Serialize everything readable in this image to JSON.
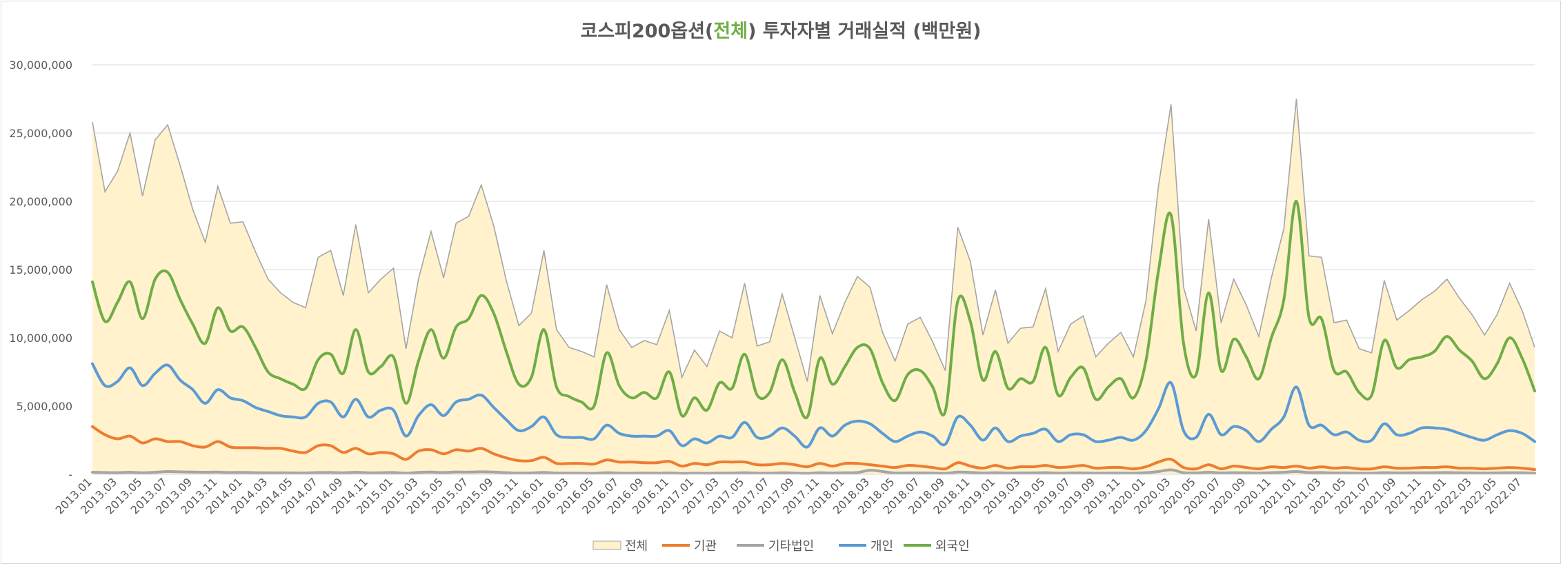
{
  "chart_data": {
    "type": "line",
    "title": {
      "prefix": "코스피200옵션(",
      "highlight": "전체",
      "suffix": ") 투자자별 거래실적 (백만원)",
      "highlight_color": "#70ad47"
    },
    "xlabel": "",
    "ylabel": "",
    "ylim": [
      0,
      30000000
    ],
    "y_ticks": [
      0,
      5000000,
      10000000,
      15000000,
      20000000,
      25000000,
      30000000
    ],
    "y_tick_labels": [
      "-",
      "5,000,000",
      "10,000,000",
      "15,000,000",
      "20,000,000",
      "25,000,000",
      "30,000,000"
    ],
    "grid": true,
    "legend_position": "bottom",
    "start_month": "2013.01",
    "x_tick_labels": [
      "2013.01",
      "2013.03",
      "2013.05",
      "2013.07",
      "2013.09",
      "2013.11",
      "2014.01",
      "2014.03",
      "2014.05",
      "2014.07",
      "2014.09",
      "2014.11",
      "2015.01",
      "2015.03",
      "2015.05",
      "2015.07",
      "2015.09",
      "2015.11",
      "2016.01",
      "2016.03",
      "2016.05",
      "2016.07",
      "2016.09",
      "2016.11",
      "2017.01",
      "2017.03",
      "2017.05",
      "2017.07",
      "2017.09",
      "2017.11",
      "2018.01",
      "2018.03",
      "2018.05",
      "2018.07",
      "2018.09",
      "2018.11",
      "2019.01",
      "2019.03",
      "2019.05",
      "2019.07",
      "2019.09",
      "2019.11",
      "2020.01",
      "2020.03",
      "2020.05",
      "2020.07",
      "2020.09",
      "2020.11",
      "2021.01",
      "2021.03",
      "2021.05",
      "2021.07",
      "2021.09",
      "2021.11",
      "2022.01",
      "2022.03",
      "2022.05",
      "2022.07"
    ],
    "series": [
      {
        "name": "전체",
        "kind": "area",
        "fill": "#fff2cc",
        "stroke": "#a5a5a5",
        "values": [
          25800000,
          20700000,
          22200000,
          25000000,
          20400000,
          24500000,
          25600000,
          22600000,
          19400000,
          17000000,
          21100000,
          18400000,
          18500000,
          16300000,
          14300000,
          13300000,
          12600000,
          12200000,
          15900000,
          16400000,
          13100000,
          18300000,
          13300000,
          14300000,
          15100000,
          9200000,
          14300000,
          17800000,
          14400000,
          18400000,
          18900000,
          21200000,
          18200000,
          14200000,
          10900000,
          11800000,
          16400000,
          10600000,
          9300000,
          9000000,
          8600000,
          13900000,
          10600000,
          9300000,
          9800000,
          9500000,
          12000000,
          7100000,
          9100000,
          7900000,
          10500000,
          10000000,
          14000000,
          9400000,
          9700000,
          13200000,
          10000000,
          6800000,
          13100000,
          10300000,
          12600000,
          14500000,
          13700000,
          10400000,
          8300000,
          11000000,
          11500000,
          9700000,
          7600000,
          18100000,
          15600000,
          10200000,
          13500000,
          9600000,
          10700000,
          10800000,
          13600000,
          9000000,
          11000000,
          11600000,
          8600000,
          9600000,
          10400000,
          8600000,
          12700000,
          21100000,
          27100000,
          13700000,
          10500000,
          18700000,
          11100000,
          14300000,
          12400000,
          10100000,
          14400000,
          18000000,
          27500000,
          16000000,
          15900000,
          11100000,
          11300000,
          9200000,
          8900000,
          14200000,
          11300000,
          12000000,
          12800000,
          13400000,
          14300000,
          12900000,
          11700000,
          10200000,
          11700000,
          14000000,
          12000000,
          9300000
        ]
      },
      {
        "name": "기관",
        "kind": "line",
        "stroke": "#ed7d31",
        "values": [
          3500000,
          2900000,
          2600000,
          2800000,
          2300000,
          2600000,
          2400000,
          2400000,
          2100000,
          2000000,
          2400000,
          2000000,
          1950000,
          1950000,
          1900000,
          1900000,
          1700000,
          1600000,
          2100000,
          2100000,
          1600000,
          1900000,
          1500000,
          1600000,
          1500000,
          1100000,
          1700000,
          1800000,
          1500000,
          1800000,
          1700000,
          1900000,
          1500000,
          1200000,
          1000000,
          1000000,
          1250000,
          800000,
          800000,
          800000,
          750000,
          1050000,
          900000,
          900000,
          850000,
          850000,
          950000,
          600000,
          800000,
          700000,
          900000,
          900000,
          900000,
          700000,
          700000,
          800000,
          700000,
          550000,
          800000,
          600000,
          800000,
          800000,
          700000,
          600000,
          500000,
          650000,
          600000,
          500000,
          400000,
          850000,
          600000,
          450000,
          650000,
          450000,
          550000,
          550000,
          650000,
          500000,
          550000,
          650000,
          450000,
          500000,
          500000,
          400000,
          550000,
          900000,
          1100000,
          500000,
          400000,
          700000,
          400000,
          600000,
          500000,
          400000,
          550000,
          500000,
          600000,
          450000,
          550000,
          450000,
          500000,
          400000,
          400000,
          550000,
          450000,
          450000,
          500000,
          500000,
          550000,
          450000,
          450000,
          400000,
          450000,
          500000,
          450000,
          350000
        ]
      },
      {
        "name": "기타법인",
        "kind": "line",
        "stroke": "#a5a5a5",
        "values": [
          150000,
          130000,
          120000,
          150000,
          110000,
          150000,
          200000,
          180000,
          160000,
          150000,
          160000,
          130000,
          140000,
          120000,
          110000,
          110000,
          100000,
          100000,
          130000,
          140000,
          110000,
          150000,
          110000,
          120000,
          130000,
          80000,
          140000,
          160000,
          130000,
          170000,
          160000,
          180000,
          160000,
          120000,
          90000,
          100000,
          140000,
          90000,
          80000,
          80000,
          70000,
          120000,
          90000,
          80000,
          90000,
          80000,
          100000,
          60000,
          80000,
          70000,
          90000,
          90000,
          120000,
          80000,
          80000,
          110000,
          90000,
          60000,
          110000,
          90000,
          110000,
          130000,
          300000,
          200000,
          90000,
          100000,
          100000,
          90000,
          70000,
          160000,
          140000,
          90000,
          120000,
          90000,
          100000,
          100000,
          120000,
          80000,
          100000,
          100000,
          80000,
          90000,
          90000,
          80000,
          120000,
          200000,
          330000,
          120000,
          100000,
          150000,
          100000,
          120000,
          110000,
          90000,
          120000,
          150000,
          200000,
          130000,
          130000,
          100000,
          100000,
          80000,
          80000,
          120000,
          100000,
          110000,
          110000,
          120000,
          130000,
          110000,
          100000,
          90000,
          100000,
          120000,
          110000,
          80000
        ]
      },
      {
        "name": "개인",
        "kind": "line",
        "stroke": "#5b9bd5",
        "values": [
          8100000,
          6500000,
          6800000,
          7800000,
          6500000,
          7400000,
          8000000,
          6900000,
          6200000,
          5200000,
          6200000,
          5600000,
          5400000,
          4900000,
          4600000,
          4300000,
          4200000,
          4200000,
          5200000,
          5300000,
          4200000,
          5500000,
          4200000,
          4700000,
          4700000,
          2800000,
          4300000,
          5100000,
          4300000,
          5300000,
          5500000,
          5800000,
          4900000,
          4000000,
          3200000,
          3500000,
          4200000,
          2900000,
          2700000,
          2700000,
          2600000,
          3600000,
          3000000,
          2800000,
          2800000,
          2800000,
          3200000,
          2100000,
          2600000,
          2300000,
          2800000,
          2700000,
          3800000,
          2700000,
          2800000,
          3400000,
          2800000,
          2000000,
          3400000,
          2800000,
          3600000,
          3900000,
          3700000,
          3000000,
          2400000,
          2800000,
          3100000,
          2800000,
          2200000,
          4200000,
          3600000,
          2500000,
          3400000,
          2400000,
          2800000,
          3000000,
          3300000,
          2400000,
          2900000,
          2900000,
          2400000,
          2500000,
          2700000,
          2500000,
          3200000,
          4800000,
          6700000,
          3200000,
          2700000,
          4400000,
          2900000,
          3500000,
          3200000,
          2400000,
          3300000,
          4200000,
          6400000,
          3600000,
          3600000,
          2900000,
          3100000,
          2500000,
          2500000,
          3700000,
          2900000,
          3000000,
          3400000,
          3400000,
          3300000,
          3000000,
          2700000,
          2500000,
          2900000,
          3200000,
          3000000,
          2400000
        ]
      },
      {
        "name": "외국인",
        "kind": "line",
        "stroke": "#70ad47",
        "values": [
          14100000,
          11200000,
          12600000,
          14100000,
          11400000,
          14300000,
          14800000,
          12800000,
          11000000,
          9600000,
          12200000,
          10500000,
          10800000,
          9300000,
          7500000,
          7000000,
          6600000,
          6300000,
          8400000,
          8800000,
          7400000,
          10600000,
          7500000,
          7900000,
          8600000,
          5200000,
          8300000,
          10600000,
          8500000,
          10800000,
          11400000,
          13100000,
          11800000,
          9000000,
          6600000,
          7100000,
          10600000,
          6400000,
          5700000,
          5300000,
          5000000,
          8900000,
          6500000,
          5600000,
          6000000,
          5600000,
          7500000,
          4300000,
          5600000,
          4700000,
          6700000,
          6300000,
          8800000,
          5800000,
          6000000,
          8400000,
          6000000,
          4200000,
          8500000,
          6600000,
          7900000,
          9300000,
          9200000,
          6700000,
          5400000,
          7300000,
          7600000,
          6400000,
          4600000,
          12700000,
          11200000,
          6900000,
          9000000,
          6300000,
          7000000,
          6800000,
          9300000,
          5800000,
          7100000,
          7800000,
          5500000,
          6400000,
          7000000,
          5600000,
          8300000,
          14900000,
          19000000,
          9600000,
          7300000,
          13300000,
          7600000,
          9900000,
          8600000,
          7000000,
          10000000,
          12800000,
          20000000,
          11500000,
          11400000,
          7600000,
          7500000,
          6000000,
          5800000,
          9800000,
          7800000,
          8400000,
          8600000,
          9000000,
          10100000,
          9100000,
          8300000,
          7000000,
          8100000,
          10000000,
          8500000,
          6100000
        ]
      }
    ]
  }
}
